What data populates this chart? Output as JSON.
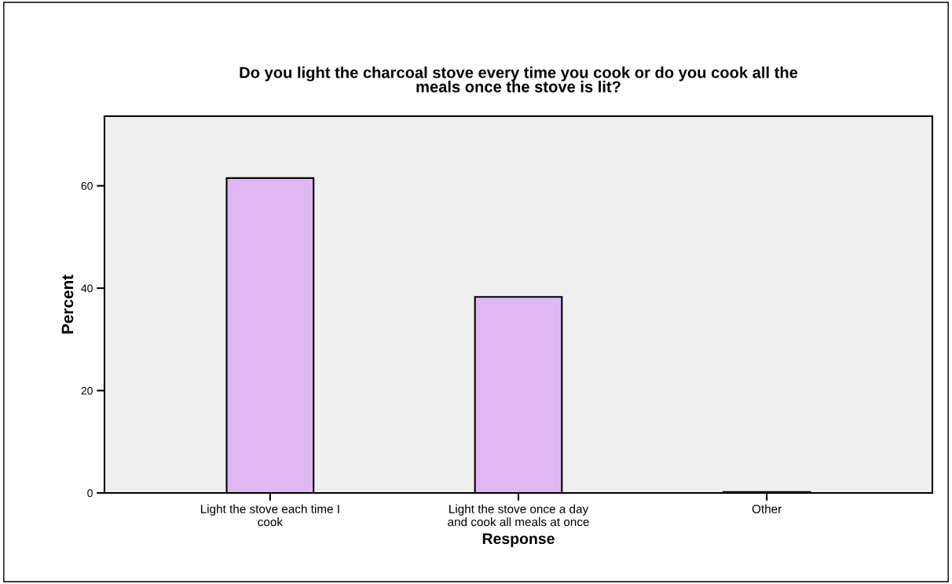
{
  "chart_data": {
    "type": "bar",
    "title": "Do you light the charcoal stove every time you cook or do you cook all the\nmeals once the stove is lit?",
    "xlabel": "Response",
    "ylabel": "Percent",
    "categories": [
      "Light the stove each time I\ncook",
      "Light the stove once a day\nand cook all meals at once",
      "Other"
    ],
    "values": [
      61.5,
      38.3,
      0.2
    ],
    "color": "#dfb8f2",
    "ylim": [
      0,
      73.6
    ],
    "yticks": [
      0,
      20,
      40,
      60
    ],
    "grid": false,
    "legend": false
  }
}
